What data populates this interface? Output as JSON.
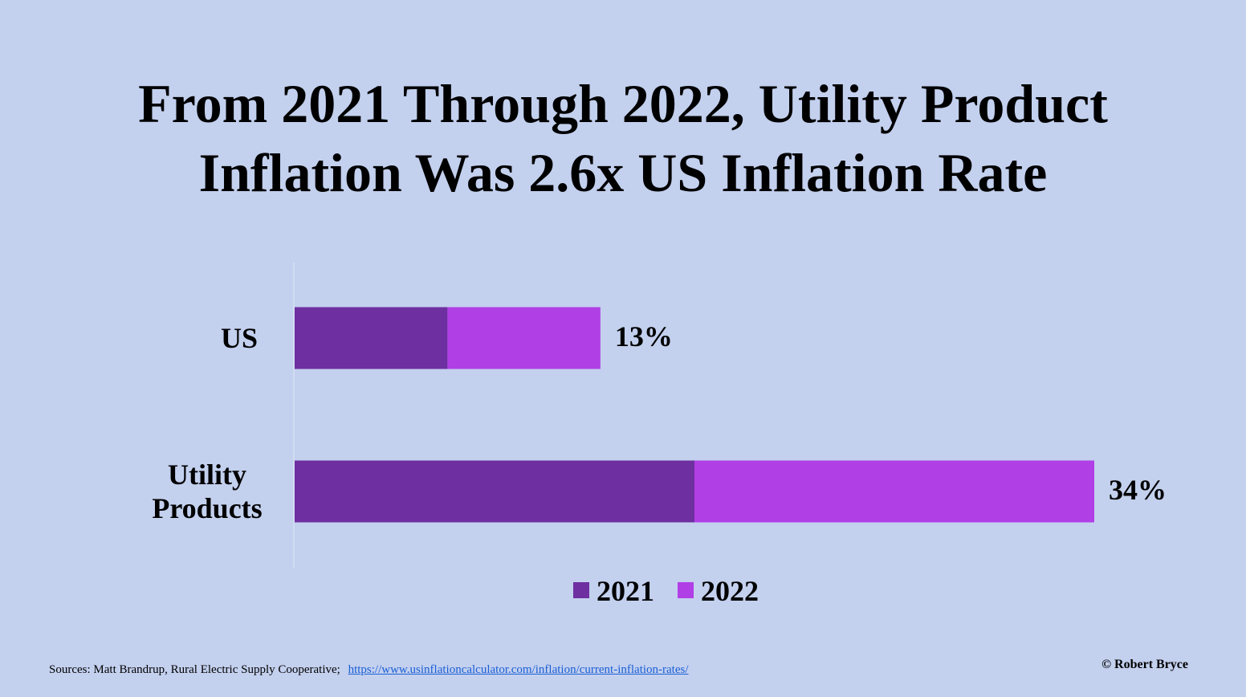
{
  "title_line1": "From 2021 Through 2022, Utility Product",
  "title_line2": "Inflation Was 2.6x US Inflation Rate",
  "sources_text": "Sources: Matt Brandrup, Rural Electric Supply Cooperative;",
  "sources_link": "https://www.usinflationcalculator.com/inflation/current-inflation-rates/",
  "copyright": "© Robert Bryce",
  "chart_data": {
    "type": "bar",
    "orientation": "horizontal",
    "stacked": true,
    "categories": [
      [
        "US"
      ],
      [
        "Utility",
        "Products"
      ]
    ],
    "series": [
      {
        "name": "2021",
        "values": [
          6.5,
          17
        ],
        "color": "#6e2fa0"
      },
      {
        "name": "2022",
        "values": [
          6.5,
          17
        ],
        "color": "#b13fe6"
      }
    ],
    "total_labels": [
      "13%",
      "34%"
    ],
    "totals": [
      13,
      34
    ],
    "xlim": [
      0,
      34
    ],
    "legend_position": "bottom",
    "grid": false,
    "title": "From 2021 Through 2022, Utility Product Inflation Was 2.6x US Inflation Rate",
    "xlabel": "",
    "ylabel": ""
  }
}
